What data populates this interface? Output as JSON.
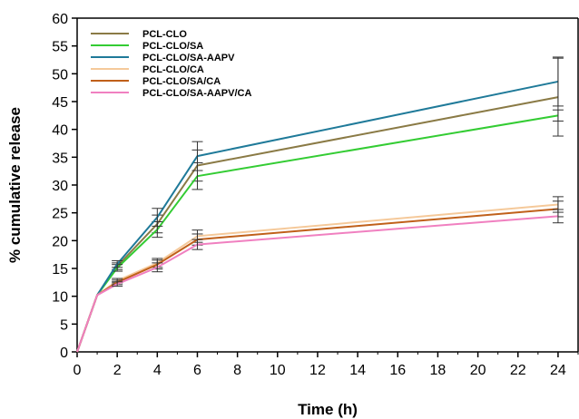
{
  "chart_data": {
    "type": "line",
    "title": "",
    "xlabel": "Time (h)",
    "ylabel": "% cumulative release",
    "xlim": [
      0,
      25
    ],
    "ylim": [
      0,
      60
    ],
    "xticks": [
      "0",
      "2",
      "4",
      "6",
      "8",
      "10",
      "12",
      "14",
      "16",
      "18",
      "20",
      "22",
      "24"
    ],
    "yticks": [
      "0",
      "5",
      "10",
      "15",
      "20",
      "25",
      "30",
      "35",
      "40",
      "45",
      "50",
      "55",
      "60"
    ],
    "grid": false,
    "legend_position": "top-left",
    "x": [
      0,
      1,
      2,
      4,
      6,
      24
    ],
    "series": [
      {
        "name": "PCL-CLO",
        "color": "#8a7a45",
        "values": [
          0,
          10.2,
          15.4,
          23.0,
          33.5,
          45.8
        ],
        "errors": [
          0,
          0,
          0.6,
          1.6,
          2.8,
          7.0
        ]
      },
      {
        "name": "PCL-CLO/SA",
        "color": "#33cc33",
        "values": [
          0,
          10.2,
          15.1,
          22.0,
          31.6,
          42.5
        ],
        "errors": [
          0,
          0,
          0.6,
          1.4,
          2.4,
          1.0
        ]
      },
      {
        "name": "PCL-CLO/SA-AAPV",
        "color": "#1f7a99",
        "values": [
          0,
          10.2,
          15.8,
          24.2,
          35.2,
          48.6
        ],
        "errors": [
          0,
          0,
          0.6,
          1.6,
          2.6,
          4.4
        ]
      },
      {
        "name": "PCL-CLO/CA",
        "color": "#f5c99a",
        "values": [
          0,
          10.2,
          12.8,
          16.0,
          20.8,
          26.5
        ],
        "errors": [
          0,
          0,
          0.4,
          0.8,
          1.1,
          1.4
        ]
      },
      {
        "name": "PCL-CLO/SA/CA",
        "color": "#c0601a",
        "values": [
          0,
          10.2,
          12.5,
          15.7,
          20.2,
          25.7
        ],
        "errors": [
          0,
          0,
          0.4,
          0.8,
          1.0,
          1.4
        ]
      },
      {
        "name": "PCL-CLO/SA-AAPV/CA",
        "color": "#f080c0",
        "values": [
          0,
          10.2,
          12.2,
          15.2,
          19.3,
          24.4
        ],
        "errors": [
          0,
          0,
          0.4,
          0.8,
          0.9,
          1.2
        ]
      }
    ]
  }
}
